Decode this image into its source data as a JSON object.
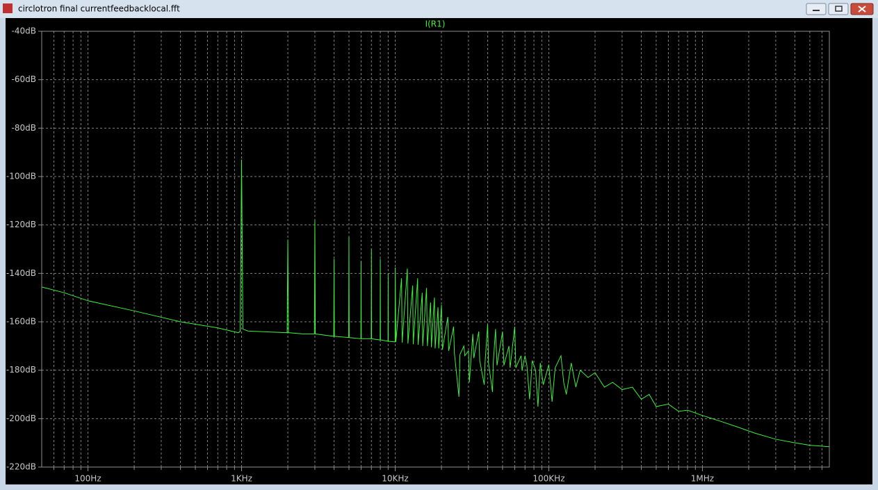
{
  "window": {
    "title": "circlotron final currentfeedbacklocal.fft"
  },
  "chart_data": {
    "type": "line",
    "title": "I(R1)",
    "xscale": "log",
    "grid": true,
    "xlim": [
      50,
      6700000
    ],
    "xticks": [
      {
        "value": 100,
        "label": "100Hz"
      },
      {
        "value": 1000,
        "label": "1KHz"
      },
      {
        "value": 10000,
        "label": "10KHz"
      },
      {
        "value": 100000,
        "label": "100KHz"
      },
      {
        "value": 1000000,
        "label": "1MHz"
      }
    ],
    "xminor": [
      60,
      70,
      80,
      90,
      200,
      300,
      400,
      500,
      600,
      700,
      800,
      900,
      2000,
      3000,
      4000,
      5000,
      6000,
      7000,
      8000,
      9000,
      20000,
      30000,
      40000,
      50000,
      60000,
      70000,
      80000,
      90000,
      200000,
      300000,
      400000,
      500000,
      600000,
      700000,
      800000,
      900000,
      2000000,
      3000000,
      4000000,
      5000000,
      6000000
    ],
    "ylim": [
      -220,
      -40
    ],
    "yticks": [
      {
        "value": -220,
        "label": "-220dB"
      },
      {
        "value": -200,
        "label": "-200dB"
      },
      {
        "value": -180,
        "label": "-180dB"
      },
      {
        "value": -160,
        "label": "-160dB"
      },
      {
        "value": -140,
        "label": "-140dB"
      },
      {
        "value": -120,
        "label": "-120dB"
      },
      {
        "value": -100,
        "label": "-100dB"
      },
      {
        "value": -80,
        "label": "-80dB"
      },
      {
        "value": -60,
        "label": "-60dB"
      },
      {
        "value": -40,
        "label": "-40dB"
      }
    ],
    "x": [
      50,
      70,
      100,
      200,
      400,
      700,
      950,
      980,
      1000,
      1020,
      1100,
      1500,
      1980,
      2000,
      2020,
      2500,
      2980,
      3000,
      3020,
      3980,
      4000,
      4020,
      4980,
      5000,
      5020,
      5980,
      6000,
      6020,
      6980,
      7000,
      7020,
      7980,
      8000,
      8020,
      8980,
      9000,
      9020,
      9980,
      10000,
      10100,
      11000,
      11100,
      12000,
      12100,
      13000,
      13100,
      14000,
      14100,
      15000,
      15100,
      16000,
      16200,
      17000,
      17200,
      18000,
      18200,
      19000,
      19200,
      20000,
      20300,
      22000,
      22300,
      24000,
      24300,
      26000,
      26400,
      28000,
      28400,
      30000,
      30400,
      32000,
      32500,
      35000,
      35500,
      38000,
      38500,
      40000,
      40500,
      43000,
      43500,
      45000,
      46000,
      50000,
      51000,
      55000,
      56000,
      60000,
      61000,
      66000,
      67000,
      70000,
      72000,
      75000,
      78000,
      82000,
      85000,
      88000,
      92000,
      100000,
      105000,
      110000,
      120000,
      125000,
      130000,
      140000,
      150000,
      160000,
      180000,
      200000,
      230000,
      260000,
      300000,
      350000,
      400000,
      450000,
      500000,
      600000,
      700000,
      800000,
      1000000,
      1300000,
      1700000,
      2200000,
      3000000,
      4000000,
      5000000,
      6700000
    ],
    "series": [
      {
        "name": "I(R1)",
        "color": "#3cf03c",
        "values": [
          -145.6,
          -148,
          -151.3,
          -155.5,
          -160,
          -162.5,
          -164.5,
          -164,
          -93,
          -163,
          -163.8,
          -164.2,
          -164.5,
          -126,
          -164.5,
          -165,
          -165,
          -118,
          -165,
          -166,
          -134,
          -166,
          -166.5,
          -125,
          -166.5,
          -167,
          -135,
          -167,
          -167,
          -130,
          -167,
          -167.5,
          -134,
          -167.5,
          -168,
          -140,
          -168,
          -168.3,
          -137.6,
          -168.3,
          -142,
          -168.6,
          -138,
          -169,
          -145,
          -169.3,
          -142,
          -169.5,
          -148,
          -170,
          -146,
          -170,
          -152,
          -170.5,
          -150,
          -171,
          -154,
          -171,
          -153,
          -171.5,
          -158,
          -172,
          -162,
          -173,
          -191,
          -173.5,
          -170,
          -174,
          -172,
          -185,
          -165,
          -175,
          -164,
          -176,
          -186,
          -176.5,
          -161,
          -177,
          -189,
          -177,
          -163,
          -178,
          -164,
          -178,
          -170,
          -179,
          -162,
          -179,
          -174,
          -180,
          -174,
          -178,
          -192,
          -176,
          -180,
          -195,
          -177,
          -186,
          -177.7,
          -193,
          -179,
          -174,
          -185,
          -190,
          -177,
          -187,
          -180,
          -183,
          -181,
          -187,
          -185,
          -188,
          -187,
          -192,
          -190,
          -195,
          -194,
          -197,
          -196.5,
          -198.7,
          -201,
          -203.5,
          -206,
          -208.5,
          -210,
          -211,
          -211.6
        ]
      }
    ]
  }
}
